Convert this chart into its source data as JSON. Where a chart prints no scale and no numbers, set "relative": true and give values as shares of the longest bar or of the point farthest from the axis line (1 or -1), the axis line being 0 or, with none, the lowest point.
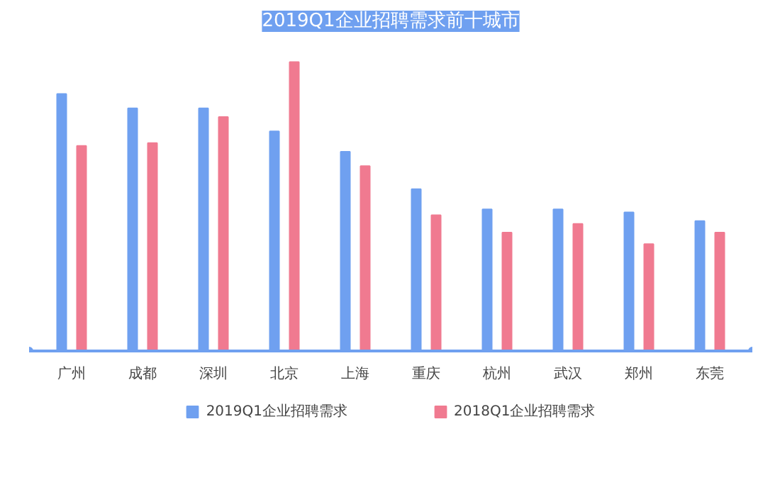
{
  "chart_data": {
    "type": "bar",
    "title": "2019Q1企业招聘需求前十城市",
    "relative": true,
    "legend": "bottom",
    "categories": [
      "广州",
      "成都",
      "深圳",
      "北京",
      "上海",
      "重庆",
      "杭州",
      "武汉",
      "郑州",
      "东莞"
    ],
    "series": [
      {
        "name": "2019Q1企业招聘需求",
        "color": "#6fa0f0",
        "values": [
          0.89,
          0.84,
          0.84,
          0.76,
          0.69,
          0.56,
          0.49,
          0.49,
          0.48,
          0.45
        ]
      },
      {
        "name": "2018Q1企业招聘需求",
        "color": "#f07a90",
        "values": [
          0.71,
          0.72,
          0.81,
          1,
          0.64,
          0.47,
          0.41,
          0.44,
          0.37,
          0.41
        ]
      }
    ]
  }
}
